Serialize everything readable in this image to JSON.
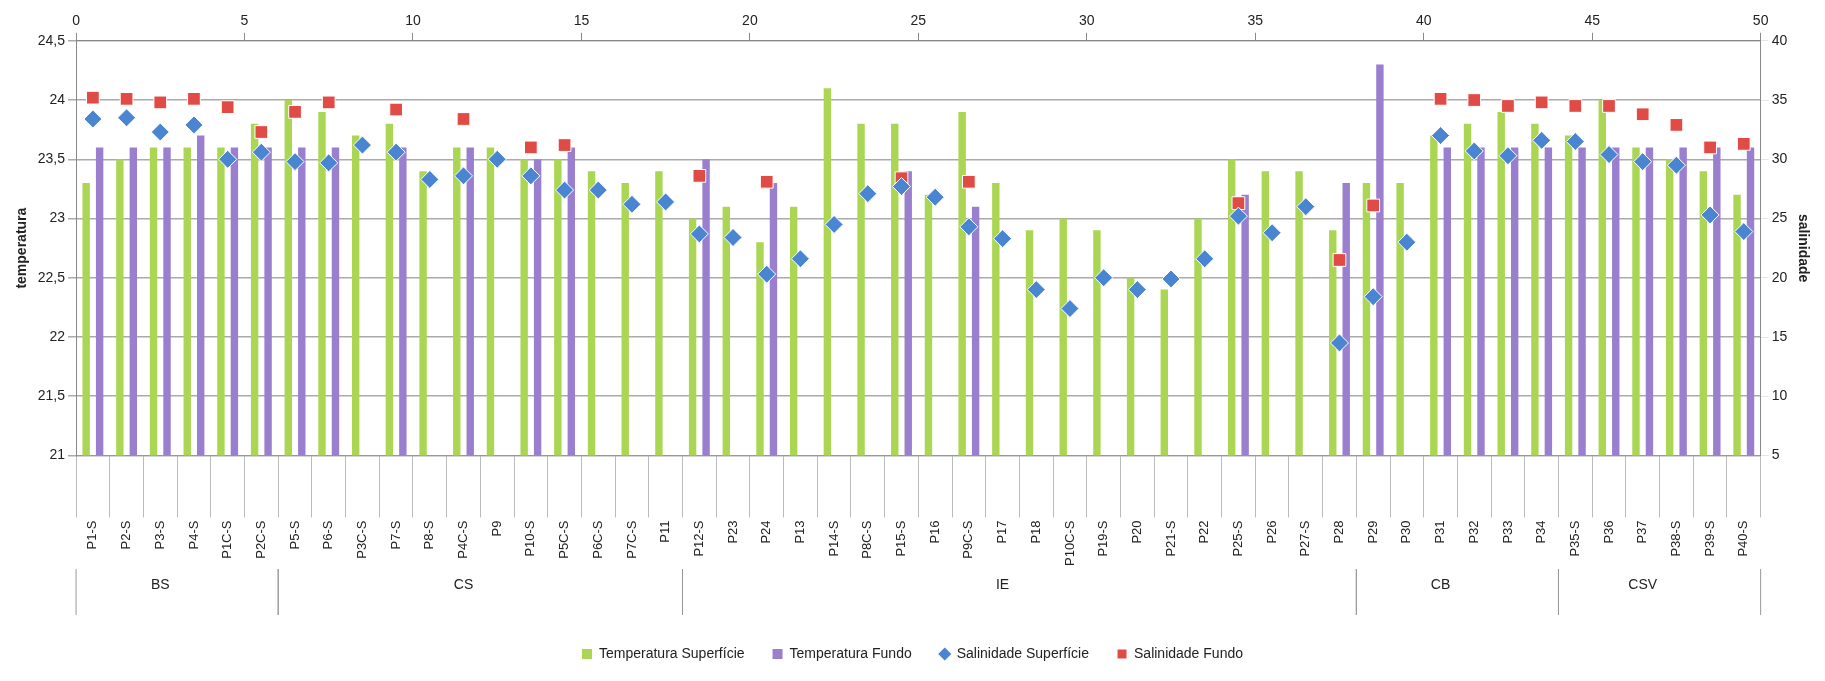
{
  "chart_data": {
    "type": "bar",
    "xlabel": null,
    "ylabel": "temperatura",
    "y2label": "salinidade",
    "categories": [
      "P1-S",
      "P2-S",
      "P3-S",
      "P4-S",
      "P1C-S",
      "P2C-S",
      "P5-S",
      "P6-S",
      "P3C-S",
      "P7-S",
      "P8-S",
      "P4C-S",
      "P9",
      "P10-S",
      "P5C-S",
      "P6C-S",
      "P7C-S",
      "P11",
      "P12-S",
      "P23",
      "P24",
      "P13",
      "P14-S",
      "P8C-S",
      "P15-S",
      "P16",
      "P9C-S",
      "P17",
      "P18",
      "P10C-S",
      "P19-S",
      "P20",
      "P21-S",
      "P22",
      "P25-S",
      "P26",
      "P27-S",
      "P28",
      "P29",
      "P30",
      "P31",
      "P32",
      "P33",
      "P34",
      "P35-S",
      "P36",
      "P37",
      "P38-S",
      "P39-S",
      "P40-S"
    ],
    "series": [
      {
        "name": "Temperatura Superfície",
        "color": "#abd654",
        "values": [
          23.3,
          23.5,
          23.6,
          23.6,
          23.6,
          23.8,
          24.0,
          23.9,
          23.7,
          23.8,
          23.4,
          23.6,
          23.6,
          23.5,
          23.5,
          23.4,
          23.3,
          23.4,
          23.0,
          23.1,
          22.8,
          23.1,
          24.1,
          23.8,
          23.8,
          23.2,
          23.9,
          23.3,
          22.9,
          23.0,
          22.9,
          22.5,
          22.4,
          23.0,
          23.5,
          23.4,
          23.4,
          22.9,
          23.3,
          23.3,
          23.7,
          23.8,
          23.9,
          23.8,
          23.7,
          24.0,
          23.6,
          23.5,
          23.4,
          23.2
        ]
      },
      {
        "name": "Temperatura Fundo",
        "color": "#9a7fcf",
        "values": [
          23.6,
          23.6,
          23.6,
          23.7,
          23.6,
          23.6,
          23.6,
          23.6,
          null,
          23.6,
          null,
          23.6,
          null,
          23.5,
          23.6,
          null,
          null,
          null,
          23.5,
          null,
          23.3,
          null,
          null,
          null,
          23.4,
          null,
          23.1,
          null,
          null,
          null,
          null,
          null,
          null,
          null,
          23.2,
          null,
          null,
          23.3,
          24.3,
          null,
          23.6,
          23.6,
          23.6,
          23.6,
          23.6,
          23.6,
          23.6,
          23.6,
          23.6,
          23.6
        ]
      },
      {
        "name": "Salinidade Superfície",
        "type": "scatter",
        "axis": "y2",
        "marker": "diamond",
        "color": "#4a85d2",
        "values": [
          33.4,
          33.5,
          32.3,
          32.9,
          30.0,
          30.6,
          29.8,
          29.7,
          31.2,
          30.6,
          28.3,
          28.6,
          30.0,
          28.6,
          27.4,
          27.4,
          26.2,
          26.4,
          23.7,
          23.4,
          20.3,
          21.6,
          24.5,
          27.1,
          27.7,
          26.8,
          24.3,
          23.3,
          19.0,
          17.4,
          20.0,
          19.0,
          19.9,
          21.6,
          25.2,
          23.8,
          26.0,
          14.5,
          18.4,
          23.0,
          32.0,
          30.7,
          30.3,
          31.6,
          31.5,
          30.4,
          29.8,
          29.5,
          25.3,
          23.9
        ]
      },
      {
        "name": "Salinidade Fundo",
        "type": "scatter",
        "axis": "y2",
        "marker": "square",
        "color": "#e04b45",
        "values": [
          35.2,
          35.1,
          34.8,
          35.1,
          34.4,
          32.3,
          34.0,
          34.8,
          null,
          34.2,
          null,
          33.4,
          null,
          31.0,
          31.2,
          null,
          null,
          null,
          28.6,
          null,
          28.1,
          null,
          null,
          null,
          28.4,
          null,
          28.1,
          null,
          null,
          null,
          null,
          null,
          null,
          null,
          26.3,
          null,
          null,
          21.5,
          26.1,
          null,
          35.1,
          35.0,
          34.5,
          34.8,
          34.5,
          34.5,
          33.8,
          32.9,
          31.0,
          31.3
        ]
      }
    ],
    "x2lim": [
      0,
      50
    ],
    "x2ticks": [
      0,
      5,
      10,
      15,
      20,
      25,
      30,
      35,
      40,
      45,
      50
    ],
    "ylim": [
      21,
      24.5
    ],
    "yticks": [
      21,
      {
        "value": 21.5,
        "label": "21,5"
      },
      22,
      {
        "value": 22.5,
        "label": "22,5"
      },
      23,
      {
        "value": 23.5,
        "label": "23,5"
      },
      24,
      {
        "value": 24.5,
        "label": "24,5"
      }
    ],
    "y2lim": [
      5,
      40
    ],
    "y2ticks": [
      5,
      10,
      15,
      20,
      25,
      30,
      35,
      40
    ],
    "annotations": [
      {
        "text": "BS",
        "x": "P3-S"
      },
      {
        "text": "CS",
        "x": "P4C-S"
      },
      {
        "text": "IE",
        "x": "P17"
      },
      {
        "text": "CB",
        "x": "P31"
      },
      {
        "text": "CSV",
        "x": "P37"
      }
    ],
    "grid": "y",
    "legend": "bottom"
  }
}
